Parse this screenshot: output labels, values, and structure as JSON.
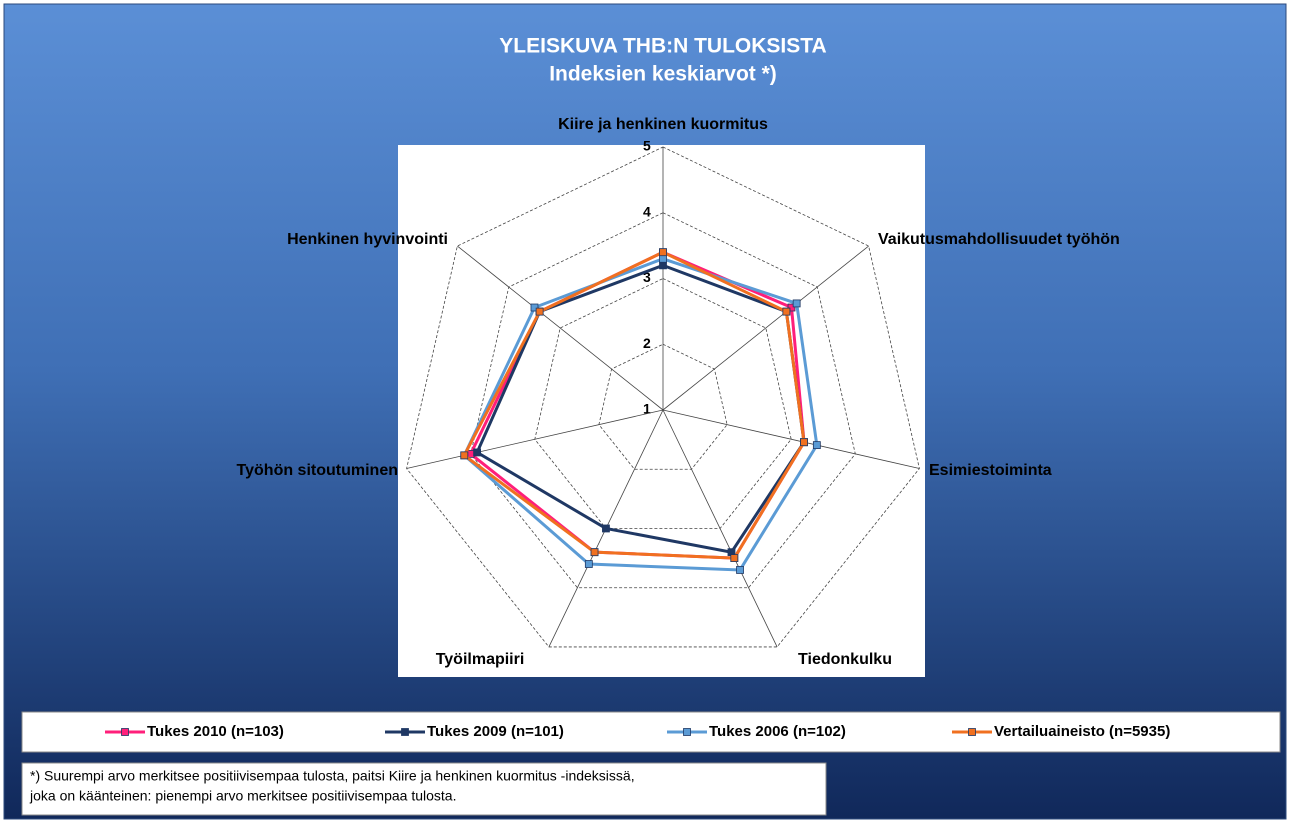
{
  "chart_data": {
    "type": "radar",
    "title": "YLEISKUVA THB:N TULOKSISTA",
    "subtitle": "Indeksien keskiarvot *)",
    "categories": [
      "Kiire ja henkinen kuormitus",
      "Vaikutusmahdollisuudet työhön",
      "Esimiestoiminta",
      "Tiedonkulku",
      "Työilmapiiri",
      "Työhön sitoutuminen",
      "Henkinen hyvinvointi"
    ],
    "series": [
      {
        "name": "Tukes 2010 (n=103)",
        "color": "#ff1f7a",
        "values": [
          3.4,
          3.5,
          3.2,
          3.5,
          3.4,
          4.0,
          3.4
        ]
      },
      {
        "name": "Tukes 2009 (n=101)",
        "color": "#1f3864",
        "values": [
          3.2,
          3.4,
          3.2,
          3.4,
          3.0,
          3.9,
          3.4
        ]
      },
      {
        "name": "Tukes 2006 (n=102)",
        "color": "#5b9bd5",
        "values": [
          3.3,
          3.6,
          3.4,
          3.7,
          3.6,
          4.1,
          3.5
        ]
      },
      {
        "name": "Vertailuaineisto (n=5935)",
        "color": "#f07020",
        "values": [
          3.4,
          3.4,
          3.2,
          3.5,
          3.4,
          4.1,
          3.4
        ]
      }
    ],
    "rlim": [
      1,
      5
    ],
    "rticks": [
      1,
      2,
      3,
      4,
      5
    ],
    "grid": true,
    "note": [
      "*) Suurempi arvo merkitsee positiivisempaa tulosta, paitsi Kiire ja henkinen kuormitus -indeksissä,",
      "joka on käänteinen: pienempi arvo merkitsee positiivisempaa tulosta."
    ]
  }
}
